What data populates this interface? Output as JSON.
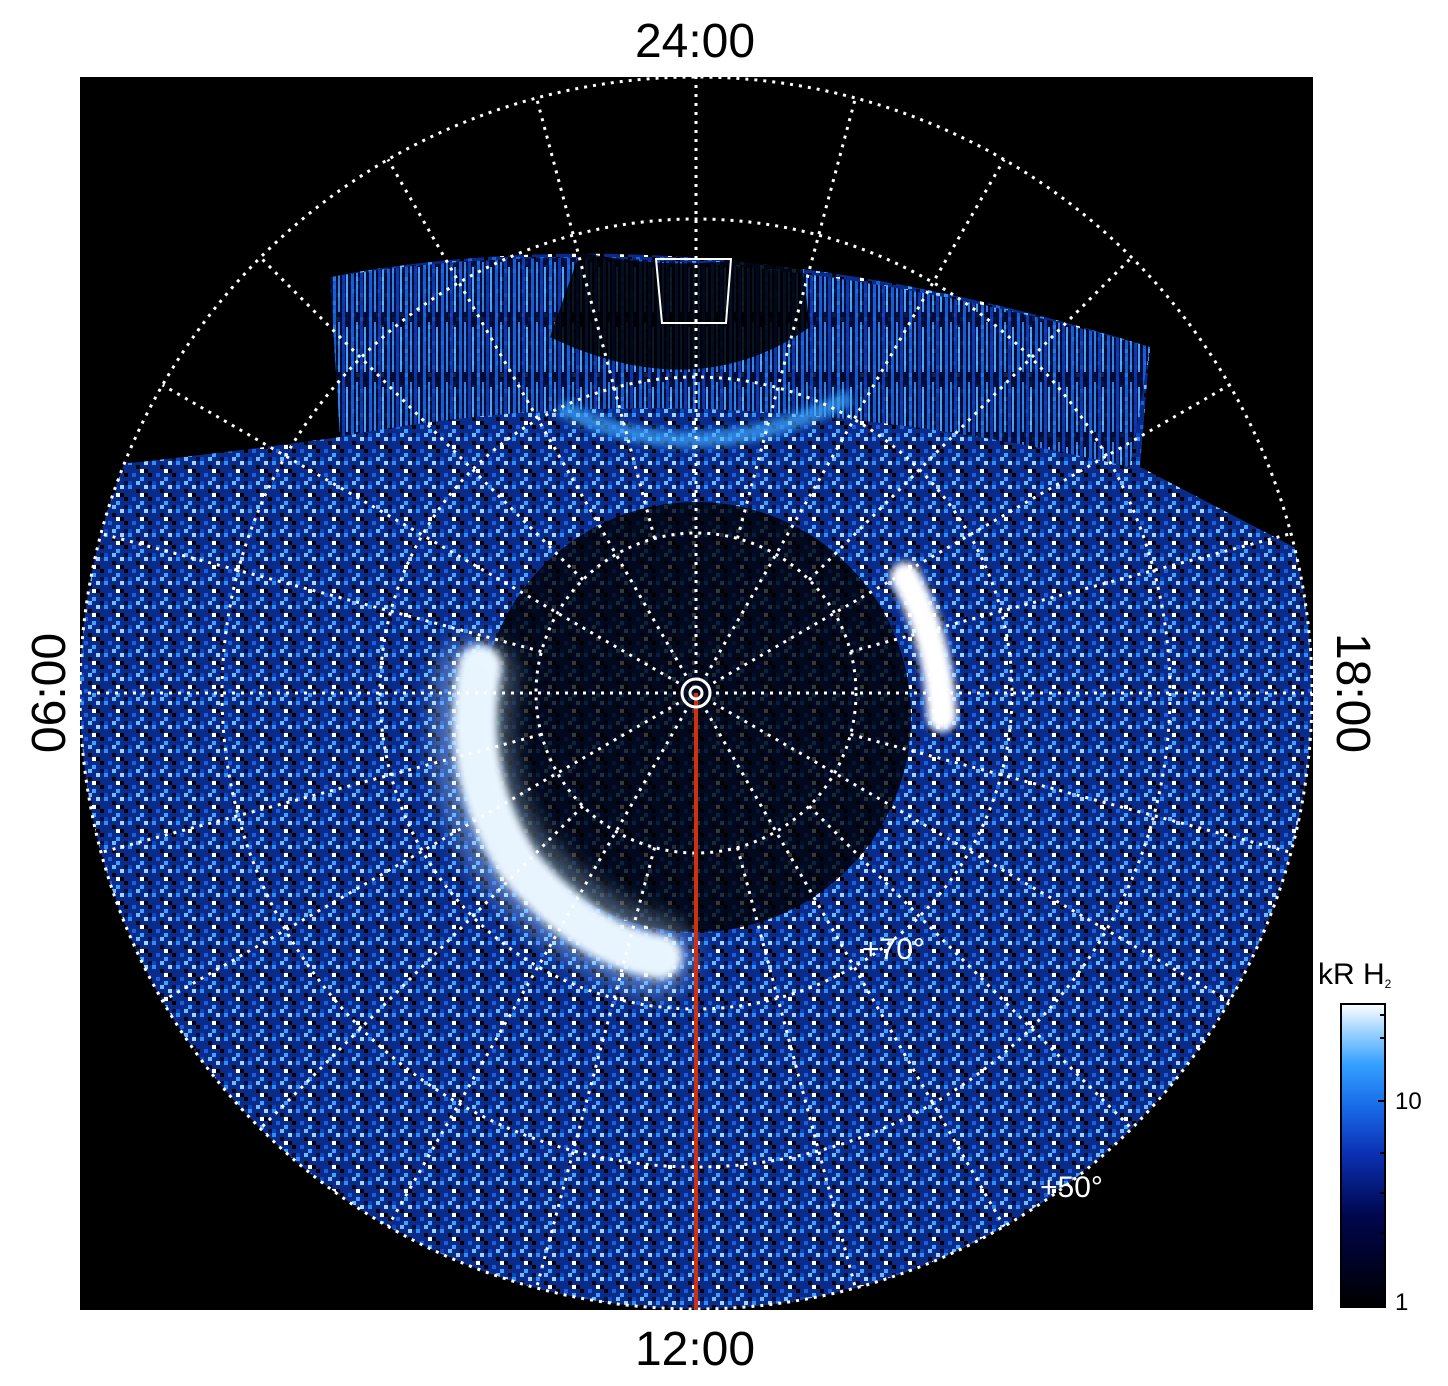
{
  "local_time_labels": {
    "top": "24:00",
    "bottom": "12:00",
    "left": "06:00",
    "right": "18:00"
  },
  "latitude_labels": [
    "+70°",
    "+50°"
  ],
  "colorbar": {
    "title": "kR H",
    "title_subscript": "2",
    "ticks": [
      "10",
      "1"
    ],
    "colors": [
      "#000000",
      "#00064d",
      "#0a2fb0",
      "#1766e6",
      "#33a0ff",
      "#a8d8ff",
      "#ffffff"
    ]
  },
  "colors": {
    "background": "#000000",
    "grid": "#ffffff",
    "meridian_line": "#d03010"
  }
}
